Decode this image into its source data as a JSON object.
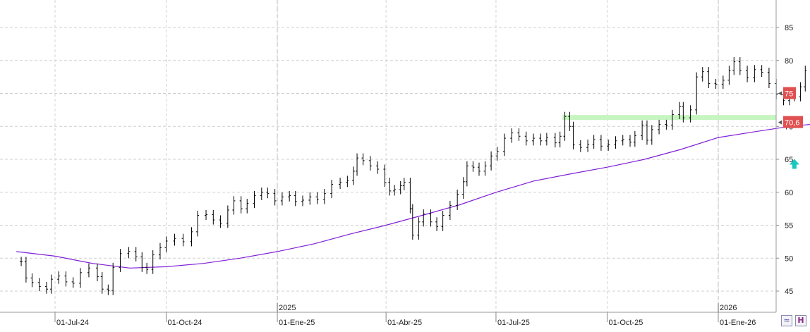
{
  "chart_data": {
    "type": "candlestick",
    "title": "",
    "x_axis": {
      "tick_labels": [
        "01-Jul-24",
        "01-Oct-24",
        "01-Ene-25",
        "01-Abr-25",
        "01-Jul-25",
        "01-Oct-25",
        "01-Ene-26"
      ],
      "year_labels": [
        "2025",
        "2026"
      ]
    },
    "y_axis": {
      "range": [
        42,
        89
      ],
      "ticks": [
        45,
        50,
        55,
        60,
        65,
        70,
        75,
        80,
        85
      ],
      "side": "right",
      "grid": true
    },
    "series": [
      {
        "kind": "price-bars",
        "color": "#000000",
        "points": [
          [
            "2024-06-03",
            49.5
          ],
          [
            "2024-06-07",
            47.0
          ],
          [
            "2024-06-12",
            46.3
          ],
          [
            "2024-06-18",
            45.7
          ],
          [
            "2024-06-24",
            45.3
          ],
          [
            "2024-06-28",
            46.8
          ],
          [
            "2024-07-04",
            47.3
          ],
          [
            "2024-07-10",
            46.4
          ],
          [
            "2024-07-16",
            46.2
          ],
          [
            "2024-07-22",
            47.8
          ],
          [
            "2024-07-29",
            48.5
          ],
          [
            "2024-08-05",
            47.2
          ],
          [
            "2024-08-09",
            45.3
          ],
          [
            "2024-08-14",
            45.1
          ],
          [
            "2024-08-18",
            48.6
          ],
          [
            "2024-08-24",
            50.7
          ],
          [
            "2024-08-31",
            51.0
          ],
          [
            "2024-09-06",
            50.2
          ],
          [
            "2024-09-11",
            48.6
          ],
          [
            "2024-09-15",
            48.3
          ],
          [
            "2024-09-20",
            50.5
          ],
          [
            "2024-09-26",
            51.6
          ],
          [
            "2024-10-01",
            52.6
          ],
          [
            "2024-10-08",
            53.0
          ],
          [
            "2024-10-15",
            52.5
          ],
          [
            "2024-10-22",
            54.0
          ],
          [
            "2024-10-27",
            56.5
          ],
          [
            "2024-11-03",
            56.6
          ],
          [
            "2024-11-09",
            55.8
          ],
          [
            "2024-11-15",
            55.3
          ],
          [
            "2024-11-21",
            57.3
          ],
          [
            "2024-11-26",
            58.7
          ],
          [
            "2024-12-02",
            57.5
          ],
          [
            "2024-12-07",
            58.3
          ],
          [
            "2024-12-13",
            59.5
          ],
          [
            "2024-12-19",
            60.0
          ],
          [
            "2024-12-24",
            59.8
          ],
          [
            "2024-12-30",
            58.7
          ],
          [
            "2025-01-05",
            59.3
          ],
          [
            "2025-01-11",
            59.5
          ],
          [
            "2025-01-16",
            58.6
          ],
          [
            "2025-01-22",
            58.8
          ],
          [
            "2025-01-28",
            59.3
          ],
          [
            "2025-02-03",
            58.9
          ],
          [
            "2025-02-09",
            59.8
          ],
          [
            "2025-02-15",
            61.2
          ],
          [
            "2025-02-22",
            61.5
          ],
          [
            "2025-02-28",
            61.8
          ],
          [
            "2025-03-05",
            63.2
          ],
          [
            "2025-03-08",
            65.2
          ],
          [
            "2025-03-13",
            64.8
          ],
          [
            "2025-03-19",
            64.0
          ],
          [
            "2025-03-25",
            63.5
          ],
          [
            "2025-03-31",
            61.5
          ],
          [
            "2025-04-04",
            60.2
          ],
          [
            "2025-04-08",
            60.4
          ],
          [
            "2025-04-13",
            61.0
          ],
          [
            "2025-04-16",
            61.5
          ],
          [
            "2025-04-21",
            57.5
          ],
          [
            "2025-04-23",
            53.5
          ],
          [
            "2025-04-28",
            55.5
          ],
          [
            "2025-05-02",
            56.7
          ],
          [
            "2025-05-08",
            55.5
          ],
          [
            "2025-05-13",
            54.8
          ],
          [
            "2025-05-18",
            56.5
          ],
          [
            "2025-05-24",
            58.0
          ],
          [
            "2025-05-30",
            59.7
          ],
          [
            "2025-06-04",
            61.6
          ],
          [
            "2025-06-07",
            64.0
          ],
          [
            "2025-06-12",
            63.8
          ],
          [
            "2025-06-17",
            63.2
          ],
          [
            "2025-06-22",
            64.0
          ],
          [
            "2025-06-27",
            65.5
          ],
          [
            "2025-07-02",
            66.2
          ],
          [
            "2025-07-08",
            68.2
          ],
          [
            "2025-07-14",
            69.0
          ],
          [
            "2025-07-20",
            68.5
          ],
          [
            "2025-07-26",
            67.8
          ],
          [
            "2025-08-01",
            68.2
          ],
          [
            "2025-08-07",
            67.8
          ],
          [
            "2025-08-12",
            68.3
          ],
          [
            "2025-08-19",
            67.5
          ],
          [
            "2025-08-23",
            68.5
          ],
          [
            "2025-08-27",
            71.5
          ],
          [
            "2025-08-31",
            70.0
          ],
          [
            "2025-09-03",
            67.2
          ],
          [
            "2025-09-09",
            66.8
          ],
          [
            "2025-09-15",
            67.3
          ],
          [
            "2025-09-20",
            68.0
          ],
          [
            "2025-09-26",
            67.0
          ],
          [
            "2025-10-02",
            67.3
          ],
          [
            "2025-10-08",
            67.8
          ],
          [
            "2025-10-14",
            68.0
          ],
          [
            "2025-10-20",
            67.6
          ],
          [
            "2025-10-24",
            68.6
          ],
          [
            "2025-10-30",
            70.2
          ],
          [
            "2025-11-03",
            67.9
          ],
          [
            "2025-11-07",
            69.5
          ],
          [
            "2025-11-13",
            70.3
          ],
          [
            "2025-11-19",
            70.2
          ],
          [
            "2025-11-24",
            71.8
          ],
          [
            "2025-11-30",
            73.0
          ],
          [
            "2025-12-03",
            71.3
          ],
          [
            "2025-12-09",
            72.5
          ],
          [
            "2025-12-14",
            77.5
          ],
          [
            "2025-12-19",
            78.3
          ],
          [
            "2025-12-24",
            76.5
          ],
          [
            "2025-12-30",
            76.4
          ],
          [
            "2026-01-05",
            77.0
          ],
          [
            "2026-01-10",
            78.5
          ],
          [
            "2026-01-14",
            79.8
          ],
          [
            "2026-01-19",
            78.5
          ],
          [
            "2026-01-25",
            77.4
          ],
          [
            "2026-01-31",
            78.6
          ],
          [
            "2026-02-06",
            78.2
          ],
          [
            "2026-02-12",
            76.5
          ],
          [
            "2026-02-18",
            74.8
          ],
          [
            "2026-02-24",
            73.9
          ],
          [
            "2026-03-01",
            75.2
          ],
          [
            "2026-03-05",
            74.5
          ],
          [
            "2026-03-10",
            76.0
          ],
          [
            "2026-03-14",
            78.5
          ],
          [
            "2026-03-19",
            80.0
          ],
          [
            "2026-03-24",
            83.0
          ],
          [
            "2026-03-28",
            85.5
          ],
          [
            "2026-04-01",
            86.8
          ],
          [
            "2026-04-03",
            80.5
          ],
          [
            "2026-04-05",
            75.0
          ]
        ]
      },
      {
        "kind": "moving-average",
        "color": "#7f1fd6",
        "points": [
          [
            "2024-05-30",
            51.0
          ],
          [
            "2024-07-01",
            50.3
          ],
          [
            "2024-08-01",
            49.2
          ],
          [
            "2024-09-01",
            48.5
          ],
          [
            "2024-10-01",
            48.7
          ],
          [
            "2024-11-01",
            49.2
          ],
          [
            "2024-12-01",
            50.0
          ],
          [
            "2025-01-01",
            51.0
          ],
          [
            "2025-02-01",
            52.2
          ],
          [
            "2025-03-01",
            53.6
          ],
          [
            "2025-04-01",
            55.0
          ],
          [
            "2025-05-01",
            56.5
          ],
          [
            "2025-06-01",
            58.1
          ],
          [
            "2025-07-01",
            60.0
          ],
          [
            "2025-08-01",
            61.7
          ],
          [
            "2025-09-01",
            62.8
          ],
          [
            "2025-10-01",
            63.8
          ],
          [
            "2025-11-01",
            65.0
          ],
          [
            "2025-12-01",
            66.5
          ],
          [
            "2026-01-01",
            68.3
          ],
          [
            "2026-02-01",
            69.2
          ],
          [
            "2026-03-01",
            70.0
          ],
          [
            "2026-04-05",
            70.6
          ]
        ]
      }
    ],
    "support_zone": {
      "from": "2025-08-25",
      "to": "2026-04-15",
      "value": 71.4,
      "color": "#c6f5c0"
    },
    "signal_marker": {
      "date": "2026-03-05",
      "value": 64.2,
      "direction": "up",
      "color": "#17c8c0"
    },
    "price_labels": [
      {
        "value": 75,
        "text": "75",
        "color": "#e05050"
      },
      {
        "value": 70.6,
        "text": "70,6",
        "color": "#e05050"
      }
    ]
  },
  "toolbar": {
    "icons": [
      "wave-icon",
      "h-icon"
    ],
    "wave_glyph": "≈",
    "h_glyph": "H"
  }
}
